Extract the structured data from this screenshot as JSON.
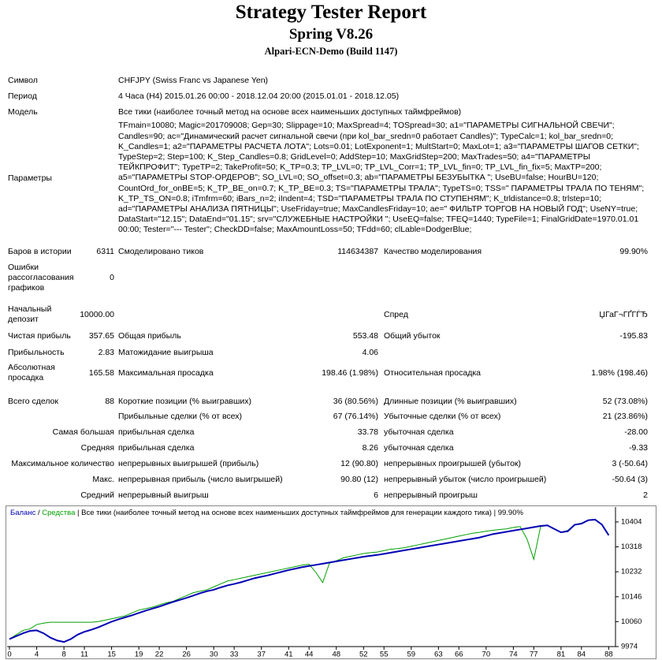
{
  "header": {
    "title": "Strategy Tester Report",
    "subtitle": "Spring V8.26",
    "server": "Alpari-ECN-Demo (Build 1147)"
  },
  "info": [
    [
      "Символ",
      "CHFJPY (Swiss Franc vs Japanese Yen)"
    ],
    [
      "Период",
      "4 Часа (H4) 2015.01.26 00:00 - 2018.12.04 20:00 (2015.01.01 - 2018.12.05)"
    ],
    [
      "Модель",
      "Все тики (наиболее точный метод на основе всех наименьших доступных таймфреймов)"
    ],
    [
      "Параметры",
      "TFmain=10080; Magic=201709008; Gep=30; Slippage=10; MaxSpread=4; TOSpread=30; a1=\"ПАРАМЕТРЫ СИГНАЛЬНОЙ СВЕЧИ\"; Candles=90; ac=\"Динамический расчет сигнальной свечи (при kol_bar_sredn=0 работает Candles)\"; TypeCalc=1; kol_bar_sredn=0; K_Candles=1; a2=\"ПАРАМЕТРЫ РАСЧЕТА ЛОТА\"; Lots=0.01; LotExponent=1; MultStart=0; MaxLot=1; a3=\"ПАРАМЕТРЫ ШАГОВ СЕТКИ\"; TypeStep=2; Step=100; K_Step_Candles=0.8; GridLevel=0; AddStep=10; MaxGridStep=200; MaxTrades=50; a4=\"ПАРАМЕТРЫ ТЕЙКПРОФИТ\"; TypeTP=2; TakeProfit=50; K_TP=0.3; TP_LVL=0; TP_LVL_Corr=1; TP_LVL_fin=0; TP_LVL_fin_fix=5; MaxTP=200; a5=\"ПАРАМЕТРЫ STOP-ОРДЕРОВ\"; SO_LVL=0; SO_offset=0.3; ab=\"ПАРАМЕТРЫ БЕЗУБЫТКА \"; UseBU=false; HourBU=120; CountOrd_for_onBE=5; K_TP_BE_on=0.7; K_TP_BE=0.3; TS=\"ПАРАМЕТРЫ ТРАЛА\"; TypeTS=0; TSS=\" ПАРАМЕТРЫ ТРАЛА ПО ТЕНЯМ\"; K_TP_TS_ON=0.8; iTmfrm=60; iBars_n=2; iIndent=4; TSD=\"ПАРАМЕТРЫ ТРАЛА ПО СТУПЕНЯМ\"; K_trldistance=0.8; trlstep=10; ad=\"ПАРАМЕТРЫ АНАЛИЗА ПЯТНИЦЫ\"; UseFriday=true; MaxCandlesFriday=10; ae=\" ФИЛЬТР ТОРГОВ НА НОВЫЙ ГОД\"; UseNY=true; DataStart=\"12.15\"; DataEnd=\"01.15\"; srv=\"СЛУЖЕБНЫЕ НАСТРОЙКИ \"; UseEQ=false; TFEQ=1440; TypeFile=1; FinalGridDate=1970.01.01 00:00; Tester=\"--- Tester\"; CheckDD=false; MaxAmountLoss=50; TFdd=60; clLable=DodgerBlue;"
    ]
  ],
  "stats": [
    [
      "Баров в истории",
      "6311",
      "Смоделировано тиков",
      "114634387",
      "Качество моделирования",
      "99.90%"
    ],
    [
      "Ошибки рассогласования графиков",
      "0"
    ],
    [
      "Начальный депозит",
      "10000.00",
      "Спред",
      "ЏГаГ¬ГҐГЃЂ"
    ],
    [
      "Чистая прибыль",
      "357.65",
      "Общая прибыль",
      "553.48",
      "Общий убыток",
      "-195.83"
    ],
    [
      "Прибыльность",
      "2.83",
      "Матожидание выигрыша",
      "4.06"
    ],
    [
      "Абсолютная просадка",
      "165.58",
      "Максимальная просадка",
      "198.46 (1.98%)",
      "Относительная просадка",
      "1.98% (198.46)"
    ],
    [
      "Всего сделок",
      "88",
      "Короткие позиции (% выигравших)",
      "36 (80.56%)",
      "Длинные позиции (% выигравших)",
      "52 (73.08%)"
    ],
    [
      "Прибыльные сделки (% от всех)",
      "67 (76.14%)",
      "Убыточные сделки (% от всех)",
      "21 (23.86%)"
    ],
    [
      "Самая большая",
      "прибыльная сделка",
      "33.78",
      "убыточная сделка",
      "-28.00"
    ],
    [
      "Средняя",
      "прибыльная сделка",
      "8.26",
      "убыточная сделка",
      "-9.33"
    ],
    [
      "Максимальное количество",
      "непрерывных выигрышей (прибыль)",
      "12 (90.80)",
      "непрерывных проигрышей (убыток)",
      "3 (-50.64)"
    ],
    [
      "Макс.",
      "непрерывная прибыль (число выигрышей)",
      "90.80 (12)",
      "непрерывный убыток (число проигрышей)",
      "-50.64 (3)"
    ],
    [
      "Средний",
      "непрерывный выигрыш",
      "6",
      "непрерывный проигрыш",
      "2"
    ]
  ],
  "chart_data": {
    "type": "line",
    "legend_separator": "/",
    "subtitle": "| Все тики (наиболее точный метод на основе всех наименьших доступных таймфреймов для генерации каждого тика) | 99.90%",
    "x": [
      0,
      1,
      2,
      3,
      4,
      5,
      6,
      7,
      8,
      9,
      10,
      11,
      12,
      13,
      14,
      15,
      16,
      17,
      18,
      19,
      20,
      21,
      22,
      23,
      24,
      25,
      26,
      27,
      28,
      29,
      30,
      31,
      32,
      33,
      34,
      35,
      36,
      37,
      38,
      39,
      40,
      41,
      42,
      43,
      44,
      45,
      46,
      47,
      48,
      49,
      50,
      51,
      52,
      53,
      54,
      55,
      56,
      57,
      58,
      59,
      60,
      61,
      62,
      63,
      64,
      65,
      66,
      67,
      68,
      69,
      70,
      71,
      72,
      73,
      74,
      75,
      76,
      77,
      78,
      79,
      80,
      81,
      82,
      83,
      84,
      85,
      86,
      87,
      88
    ],
    "series": [
      {
        "name": "Баланс",
        "color": "#0000b4",
        "values": [
          10000,
          10010,
          10020,
          10028,
          10030,
          10020,
          10005,
          9995,
          9990,
          10000,
          10015,
          10025,
          10032,
          10040,
          10050,
          10060,
          10068,
          10075,
          10082,
          10090,
          10098,
          10105,
          10112,
          10120,
          10128,
          10135,
          10142,
          10150,
          10158,
          10165,
          10170,
          10178,
          10185,
          10190,
          10196,
          10203,
          10210,
          10215,
          10220,
          10226,
          10232,
          10238,
          10243,
          10248,
          10252,
          10256,
          10260,
          10264,
          10268,
          10272,
          10276,
          10280,
          10284,
          10287,
          10290,
          10294,
          10298,
          10302,
          10306,
          10310,
          10314,
          10318,
          10322,
          10326,
          10330,
          10334,
          10338,
          10342,
          10346,
          10350,
          10356,
          10362,
          10366,
          10370,
          10374,
          10378,
          10382,
          10386,
          10390,
          10392,
          10380,
          10368,
          10372,
          10394,
          10398,
          10410,
          10412,
          10395,
          10358
        ]
      },
      {
        "name": "Средства",
        "color": "#00a000",
        "values": [
          10000,
          10015,
          10030,
          10035,
          10050,
          10055,
          10058,
          10058,
          10058,
          10058,
          10058,
          10058,
          10058,
          10060,
          10065,
          10070,
          10075,
          10080,
          10090,
          10100,
          10105,
          10110,
          10118,
          10125,
          10130,
          10140,
          10150,
          10160,
          10165,
          10170,
          10180,
          10190,
          10200,
          10205,
          10210,
          10215,
          10220,
          10225,
          10230,
          10235,
          10240,
          10245,
          10250,
          10255,
          10258,
          10230,
          10195,
          10262,
          10270,
          10280,
          10285,
          10290,
          10295,
          10298,
          10300,
          10305,
          10310,
          10312,
          10315,
          10320,
          10325,
          10330,
          10335,
          10340,
          10345,
          10350,
          10355,
          10360,
          10365,
          10368,
          10372,
          10375,
          10378,
          10380,
          10385,
          10388,
          10345,
          10275,
          10388,
          10392,
          10380,
          10368,
          10375,
          10395,
          10400,
          10410,
          10412,
          10395,
          10358
        ]
      }
    ],
    "xlim": [
      0,
      89
    ],
    "ylim": [
      9974,
      10420
    ],
    "xticks": [
      0,
      4,
      8,
      11,
      15,
      19,
      22,
      26,
      30,
      33,
      37,
      41,
      44,
      48,
      52,
      55,
      59,
      63,
      66,
      70,
      74,
      77,
      81,
      84,
      88
    ],
    "yticks": [
      9974,
      10060,
      10146,
      10232,
      10318,
      10404
    ]
  }
}
